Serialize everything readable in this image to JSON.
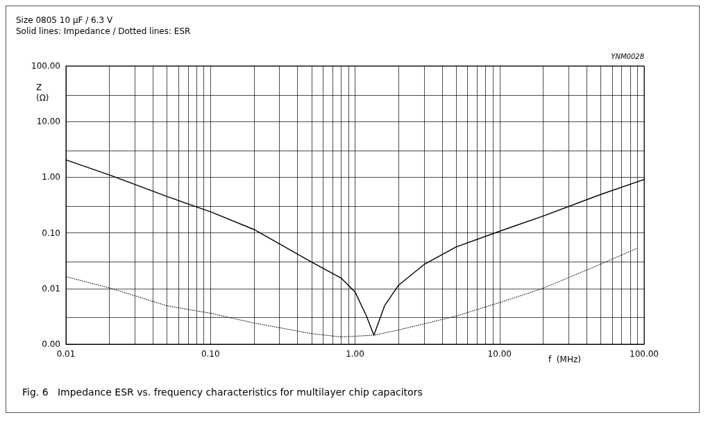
{
  "chart_data": {
    "type": "line",
    "title": "Size 0805 10 μF / 6.3 V",
    "subtitle": "Solid lines: Impedance / Dotted lines: ESR",
    "xlabel": "f  (MHz)",
    "ylabel": "Z\n(Ω)",
    "annotations": [
      "YNM0028",
      "Fig. 6   Impedance ESR vs. frequency characteristics for multilayer chip capacitors"
    ],
    "log": "xy",
    "grid": true,
    "marker": "none",
    "xlim": [
      0.01,
      100
    ],
    "ylim": [
      0.001,
      100
    ],
    "xticks": [
      {
        "value": 0.01,
        "label": "0.01"
      },
      {
        "value": 0.02,
        "label": null
      },
      {
        "value": 0.03,
        "label": null
      },
      {
        "value": 0.04,
        "label": null
      },
      {
        "value": 0.05,
        "label": null
      },
      {
        "value": 0.06,
        "label": null
      },
      {
        "value": 0.07,
        "label": null
      },
      {
        "value": 0.08,
        "label": null
      },
      {
        "value": 0.09,
        "label": null
      },
      {
        "value": 0.1,
        "label": "0.10"
      },
      {
        "value": 0.2,
        "label": null
      },
      {
        "value": 0.3,
        "label": null
      },
      {
        "value": 0.4,
        "label": null
      },
      {
        "value": 0.5,
        "label": null
      },
      {
        "value": 0.6,
        "label": null
      },
      {
        "value": 0.7,
        "label": null
      },
      {
        "value": 0.8,
        "label": null
      },
      {
        "value": 0.9,
        "label": null
      },
      {
        "value": 1,
        "label": "1.00"
      },
      {
        "value": 2,
        "label": null
      },
      {
        "value": 3,
        "label": null
      },
      {
        "value": 4,
        "label": null
      },
      {
        "value": 5,
        "label": null
      },
      {
        "value": 6,
        "label": null
      },
      {
        "value": 7,
        "label": null
      },
      {
        "value": 8,
        "label": null
      },
      {
        "value": 9,
        "label": null
      },
      {
        "value": 10,
        "label": "10.00"
      },
      {
        "value": 20,
        "label": null
      },
      {
        "value": 30,
        "label": null
      },
      {
        "value": 40,
        "label": null
      },
      {
        "value": 50,
        "label": null
      },
      {
        "value": 60,
        "label": null
      },
      {
        "value": 70,
        "label": null
      },
      {
        "value": 80,
        "label": null
      },
      {
        "value": 90,
        "label": null
      },
      {
        "value": 100,
        "label": "100.00"
      }
    ],
    "yticks": [
      {
        "value": 0.001,
        "label": "0.00"
      },
      {
        "value": 0.003,
        "label": null
      },
      {
        "value": 0.01,
        "label": "0.01"
      },
      {
        "value": 0.03,
        "label": null
      },
      {
        "value": 0.1,
        "label": "0.10"
      },
      {
        "value": 0.3,
        "label": null
      },
      {
        "value": 1,
        "label": "1.00"
      },
      {
        "value": 3,
        "label": null
      },
      {
        "value": 10,
        "label": "10.00"
      },
      {
        "value": 30,
        "label": null
      },
      {
        "value": 100,
        "label": "100.00"
      }
    ],
    "series": [
      {
        "color": "#000000",
        "line_style": "solid",
        "x": [
          0.01,
          0.02,
          0.05,
          0.1,
          0.2,
          0.5,
          0.8,
          1,
          1.2,
          1.35,
          1.6,
          2,
          3,
          5,
          10,
          20,
          50,
          100
        ],
        "values": [
          2.05,
          1.1,
          0.45,
          0.24,
          0.115,
          0.03,
          0.0155,
          0.0087,
          0.0032,
          0.00145,
          0.0049,
          0.0115,
          0.027,
          0.056,
          0.107,
          0.2,
          0.49,
          0.91
        ]
      },
      {
        "color": "#000000",
        "line_style": "dotted",
        "x": [
          0.01,
          0.02,
          0.05,
          0.1,
          0.2,
          0.5,
          0.8,
          1.35,
          2,
          5,
          10,
          20,
          50,
          90
        ],
        "values": [
          0.0163,
          0.0103,
          0.0049,
          0.0036,
          0.0024,
          0.00155,
          0.00135,
          0.00145,
          0.0018,
          0.0032,
          0.0056,
          0.0101,
          0.0274,
          0.053
        ]
      }
    ]
  }
}
